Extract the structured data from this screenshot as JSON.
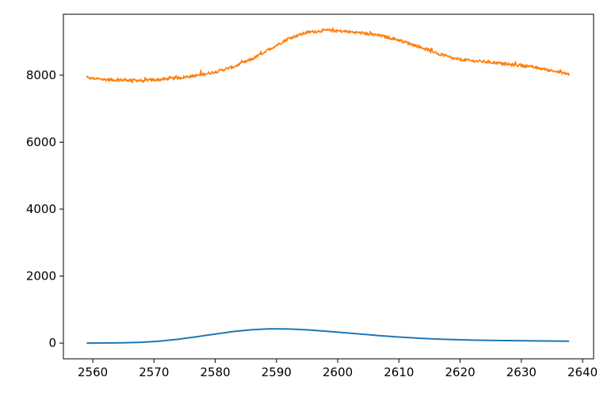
{
  "chart_data": {
    "type": "line",
    "title": "",
    "xlabel": "",
    "ylabel": "",
    "xlim": [
      2555.2,
      2641.8
    ],
    "ylim": [
      -470,
      9820
    ],
    "x_ticks": [
      2560,
      2570,
      2580,
      2590,
      2600,
      2610,
      2620,
      2630,
      2640
    ],
    "y_ticks": [
      0,
      2000,
      4000,
      6000,
      8000
    ],
    "grid": false,
    "legend": "none",
    "series": [
      {
        "color": "#1f77b4",
        "points": [
          [
            2559,
            0
          ],
          [
            2562,
            2
          ],
          [
            2565,
            8
          ],
          [
            2568,
            25
          ],
          [
            2571,
            60
          ],
          [
            2574,
            115
          ],
          [
            2577,
            190
          ],
          [
            2580,
            270
          ],
          [
            2583,
            345
          ],
          [
            2586,
            400
          ],
          [
            2589,
            425
          ],
          [
            2592,
            420
          ],
          [
            2595,
            395
          ],
          [
            2598,
            355
          ],
          [
            2601,
            310
          ],
          [
            2604,
            265
          ],
          [
            2607,
            220
          ],
          [
            2610,
            180
          ],
          [
            2613,
            148
          ],
          [
            2616,
            122
          ],
          [
            2619,
            103
          ],
          [
            2622,
            90
          ],
          [
            2625,
            80
          ],
          [
            2628,
            73
          ],
          [
            2631,
            67
          ],
          [
            2634,
            62
          ],
          [
            2637.8,
            57
          ]
        ]
      },
      {
        "color": "#ff7f0e",
        "noisy": true,
        "points": [
          [
            2559,
            7920
          ],
          [
            2562,
            7870
          ],
          [
            2565,
            7855
          ],
          [
            2568,
            7845
          ],
          [
            2571,
            7870
          ],
          [
            2574,
            7920
          ],
          [
            2577,
            7990
          ],
          [
            2580,
            8100
          ],
          [
            2583,
            8250
          ],
          [
            2586,
            8480
          ],
          [
            2589,
            8790
          ],
          [
            2592,
            9100
          ],
          [
            2595,
            9280
          ],
          [
            2598,
            9340
          ],
          [
            2601,
            9310
          ],
          [
            2604,
            9260
          ],
          [
            2607,
            9180
          ],
          [
            2610,
            9050
          ],
          [
            2613,
            8870
          ],
          [
            2616,
            8680
          ],
          [
            2619,
            8490
          ],
          [
            2622,
            8430
          ],
          [
            2625,
            8390
          ],
          [
            2628,
            8320
          ],
          [
            2631,
            8270
          ],
          [
            2634,
            8170
          ],
          [
            2637.8,
            8030
          ]
        ]
      }
    ]
  }
}
